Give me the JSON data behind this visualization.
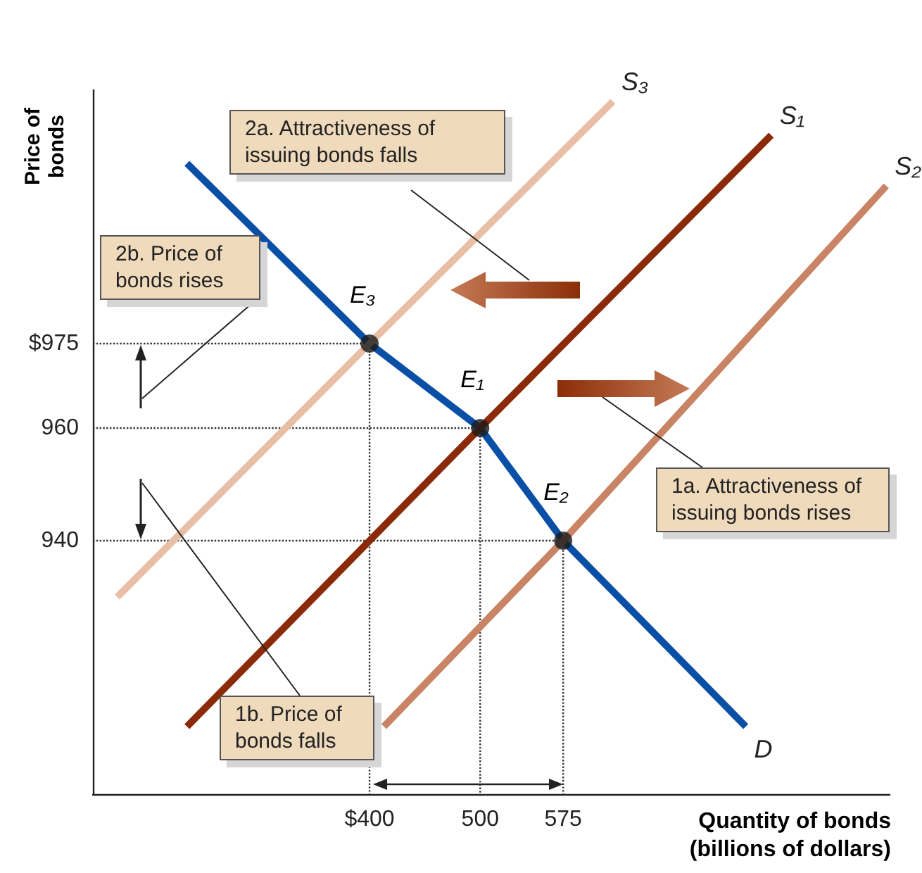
{
  "chart_data": {
    "type": "line",
    "xlabel": "Quantity of bonds (billions of dollars)",
    "ylabel": "Price of bonds",
    "xlim": [
      150,
      870
    ],
    "ylim": [
      895,
      1020
    ],
    "xticks": [
      {
        "value": 400,
        "label": "$400"
      },
      500,
      575
    ],
    "yticks": [
      940,
      960,
      {
        "value": 975,
        "label": "$975"
      }
    ],
    "grid": false,
    "series": [
      {
        "name": "D",
        "color": "#0a4fa6",
        "marker": "none",
        "line_style": "solid",
        "x": [
          235,
          400,
          500,
          575,
          740
        ],
        "values": [
          1007,
          975,
          960,
          940,
          907
        ]
      },
      {
        "name": "S₁",
        "color": "#8b2a08",
        "marker": "none",
        "line_style": "solid",
        "x": [
          235,
          500,
          763
        ],
        "values": [
          907,
          960,
          1012
        ]
      },
      {
        "name": "S₂",
        "color": "#c98465",
        "marker": "none",
        "line_style": "solid",
        "x": [
          413,
          575,
          867
        ],
        "values": [
          907,
          940,
          1003
        ]
      },
      {
        "name": "S₃",
        "color": "#e8bfa6",
        "marker": "none",
        "line_style": "solid",
        "x": [
          172,
          400,
          620
        ],
        "values": [
          930,
          975,
          1018
        ]
      },
      {
        "type": "line",
        "color": "#333333",
        "marker": "none",
        "line_style": "dotted",
        "x": [
          150,
          400,
          400
        ],
        "values": [
          975,
          975,
          895
        ]
      },
      {
        "type": "line",
        "color": "#333333",
        "marker": "none",
        "line_style": "dotted",
        "x": [
          150,
          500,
          500
        ],
        "values": [
          960,
          960,
          895
        ]
      },
      {
        "type": "line",
        "color": "#333333",
        "marker": "none",
        "line_style": "dotted",
        "x": [
          150,
          575,
          575
        ],
        "values": [
          940,
          940,
          895
        ]
      },
      {
        "type": "scatter",
        "color": "#1a1a1a",
        "marker": "circle",
        "x": [
          400,
          500,
          575
        ],
        "values": [
          975,
          960,
          940
        ]
      }
    ],
    "annotations": [
      "2a. Attractiveness of issuing bonds falls",
      "2b. Price of bonds rises",
      "1a. Attractiveness of issuing bonds rises",
      "1b. Price of bonds falls",
      {
        "text": "E₃",
        "x": 400,
        "y": 975
      },
      {
        "text": "E₁",
        "x": 500,
        "y": 960
      },
      {
        "text": "E₂",
        "x": 575,
        "y": 940
      }
    ]
  }
}
